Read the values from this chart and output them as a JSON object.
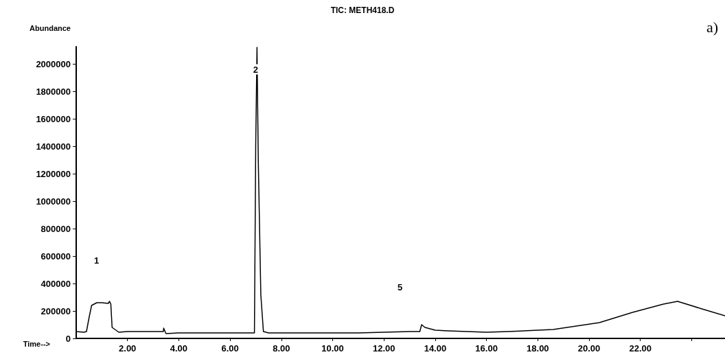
{
  "chart_data": {
    "type": "line",
    "title": "TIC: METH418.D",
    "xlabel": "Time-->",
    "ylabel": "Abundance",
    "x": [
      0,
      0.3,
      0.4,
      0.5,
      0.6,
      0.8,
      1.0,
      1.25,
      1.3,
      1.35,
      1.4,
      1.55,
      1.66,
      2.0,
      3.0,
      3.4,
      3.41,
      3.5,
      4.0,
      5.0,
      6.0,
      6.95,
      7.0,
      7.05,
      7.1,
      7.2,
      7.3,
      7.5,
      9.0,
      11.0,
      13.0,
      13.4,
      13.47,
      13.6,
      14.0,
      14.5,
      16.0,
      16.83,
      18.6,
      20.4,
      21.7,
      22.9,
      23.45,
      24.4,
      25.3
    ],
    "series": [
      {
        "color": "#000000",
        "values": [
          50000,
          45000,
          50000,
          150000,
          240000,
          260000,
          260000,
          255000,
          270000,
          250000,
          80000,
          60000,
          45000,
          50000,
          50000,
          50000,
          75000,
          35000,
          40000,
          40000,
          40000,
          40000,
          1400000,
          2120000,
          1300000,
          315000,
          50000,
          40000,
          40000,
          40000,
          50000,
          50000,
          100000,
          80000,
          60000,
          55000,
          45000,
          50000,
          65000,
          115000,
          190000,
          250000,
          270000,
          215000,
          165000
        ]
      }
    ],
    "xlim": [
      0,
      25.3
    ],
    "ylim": [
      0,
      2125000
    ],
    "xticks": [
      {
        "value": 2,
        "label": "2.00"
      },
      {
        "value": 4,
        "label": "4.00"
      },
      {
        "value": 6,
        "label": "6.00"
      },
      {
        "value": 8,
        "label": "8.00"
      },
      {
        "value": 10,
        "label": "10.00"
      },
      {
        "value": 12,
        "label": "12.00"
      },
      {
        "value": 14,
        "label": "14.00"
      },
      {
        "value": 16,
        "label": "16.00"
      },
      {
        "value": 18,
        "label": "18.00"
      },
      {
        "value": 20,
        "label": "20.00"
      },
      {
        "value": 22,
        "label": "22.00"
      },
      {
        "value": 24,
        "label": null
      }
    ],
    "yticks": [
      0,
      200000,
      400000,
      600000,
      800000,
      1000000,
      1200000,
      1400000,
      1600000,
      1800000,
      2000000
    ],
    "annotations": [
      "1",
      {
        "text": "2",
        "x": 7.0,
        "y": 1960000
      },
      "5",
      "a)"
    ],
    "grid": false,
    "marker": "none",
    "line_style": "solid"
  }
}
